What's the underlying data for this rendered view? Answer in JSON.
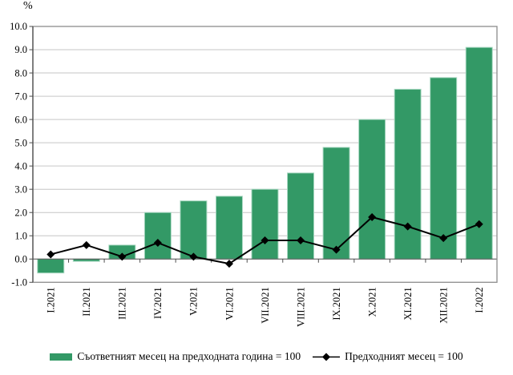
{
  "chart_data": {
    "type": "combo_bar_line",
    "title": "",
    "unit_label": "%",
    "categories": [
      "I.2021",
      "II.2021",
      "III.2021",
      "IV.2021",
      "V.2021",
      "VI.2021",
      "VII.2021",
      "VIII.2021",
      "IX.2021",
      "X.2021",
      "XI.2021",
      "XII.2021",
      "I.2022"
    ],
    "series": [
      {
        "name": "Съответният месец на предходната година = 100",
        "type": "bar",
        "values": [
          -0.6,
          -0.1,
          0.6,
          2.0,
          2.5,
          2.7,
          3.0,
          3.7,
          4.8,
          6.0,
          7.3,
          7.8,
          9.1
        ]
      },
      {
        "name": "Предходният месец = 100",
        "type": "line",
        "marker": "diamond",
        "values": [
          0.2,
          0.6,
          0.1,
          0.7,
          0.1,
          -0.2,
          0.8,
          0.8,
          0.4,
          1.8,
          1.4,
          0.9,
          1.5
        ]
      }
    ],
    "xlabel": "",
    "ylabel": "%",
    "ylim": [
      -1.0,
      10.0
    ],
    "ytick_step": 1.0,
    "ytick_labels": [
      "10.0",
      "9.0",
      "8.0",
      "7.0",
      "6.0",
      "5.0",
      "4.0",
      "3.0",
      "2.0",
      "1.0",
      "0.0",
      "-1.0"
    ],
    "grid": true,
    "legend_position": "bottom"
  },
  "colors": {
    "bar": "#339966",
    "bar_edge": "#a9d8c2",
    "line": "#000000",
    "marker": "#000000",
    "grid": "#c6c6c6",
    "border": "#8c8c8c",
    "axis": "#4d4d4d",
    "text": "#000000",
    "background": "#ffffff"
  }
}
